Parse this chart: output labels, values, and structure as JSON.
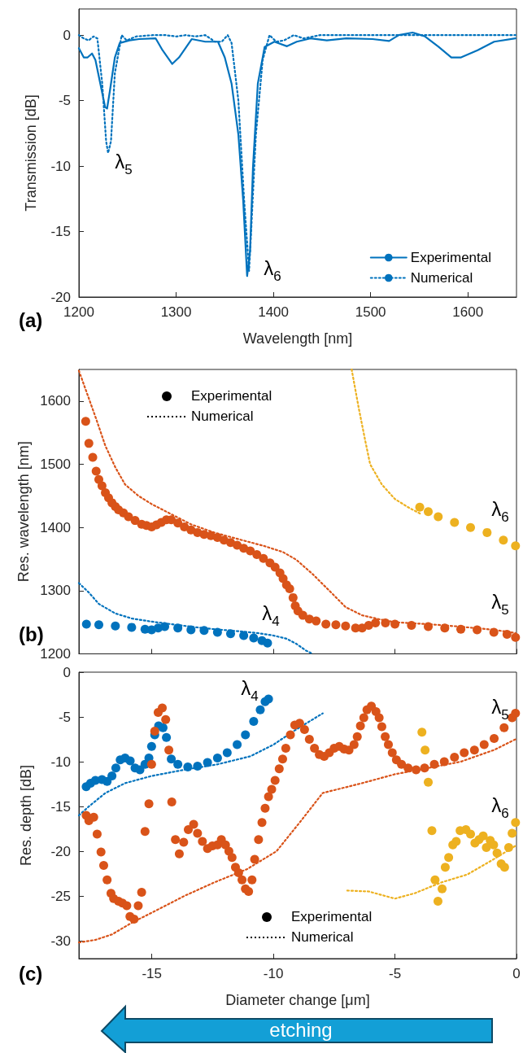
{
  "chart_data": [
    {
      "type": "line",
      "title": "(a)",
      "xlabel": "Wavelength [nm]",
      "ylabel": "Transmission [dB]",
      "xlim": [
        1200,
        1650
      ],
      "xticks": [
        1200,
        1300,
        1400,
        1500,
        1600
      ],
      "ylim": [
        -20,
        2
      ],
      "yticks": [
        -20,
        -15,
        -10,
        -5,
        0
      ],
      "grid": false,
      "legend": "bottom right",
      "annotations": [
        "λ$_{5}$",
        "λ$_{6}$"
      ],
      "series": [
        {
          "name": "Experimental",
          "color": "#0072bd",
          "line_style": "solid",
          "x": [
            1200,
            1205,
            1209,
            1213.5,
            1217,
            1222,
            1227,
            1229,
            1232,
            1237,
            1242,
            1252,
            1262,
            1279,
            1286,
            1296,
            1303,
            1316,
            1330,
            1343,
            1350,
            1357,
            1364,
            1369,
            1373,
            1376,
            1379,
            1384,
            1391,
            1401,
            1414,
            1424,
            1438,
            1455,
            1475,
            1502,
            1519,
            1529,
            1543,
            1556,
            1570,
            1583,
            1593,
            1610,
            1627,
            1649
          ],
          "values": [
            -1.0,
            -1.7,
            -1.7,
            -1.4,
            -1.9,
            -3.7,
            -5.5,
            -5.6,
            -4.2,
            -1.7,
            -0.6,
            -0.4,
            -0.3,
            -0.25,
            -1.15,
            -2.2,
            -1.7,
            -0.3,
            -0.5,
            -0.5,
            -1.7,
            -3.7,
            -7.6,
            -12.7,
            -18.4,
            -16.5,
            -10.1,
            -3.7,
            -0.9,
            -0.5,
            -0.85,
            -0.5,
            -0.25,
            -0.4,
            -0.25,
            -0.3,
            -0.45,
            0,
            0.2,
            -0.1,
            -0.9,
            -1.7,
            -1.7,
            -1.15,
            -0.5,
            -0.25
          ]
        },
        {
          "name": "Numerical",
          "color": "#0072bd",
          "line_style": "dotted",
          "x": [
            1200,
            1205,
            1210,
            1215,
            1219,
            1224,
            1228,
            1230,
            1233,
            1237,
            1244,
            1249,
            1259,
            1276,
            1289,
            1300,
            1310,
            1320,
            1330,
            1340,
            1347,
            1353,
            1357,
            1364,
            1370,
            1375,
            1377,
            1382,
            1389,
            1396,
            1403,
            1411,
            1421,
            1431,
            1448,
            1492,
            1560,
            1649
          ],
          "values": [
            0,
            -0.25,
            -0.4,
            -0.1,
            -0.25,
            -3.7,
            -8.1,
            -9.0,
            -8.1,
            -2.9,
            0,
            -0.4,
            -0.1,
            0,
            0,
            -0.1,
            0,
            -0.1,
            0,
            -0.5,
            -0.5,
            0,
            -0.6,
            -5.0,
            -12.7,
            -18.0,
            -15.2,
            -7.6,
            -1.9,
            0,
            -0.5,
            -0.4,
            0,
            -0.25,
            0,
            0,
            0,
            0
          ]
        }
      ]
    },
    {
      "type": "scatter",
      "title": "(b)",
      "ylabel": "Res. wavelength [nm]",
      "xlim": [
        -18,
        0
      ],
      "xticks": [
        -15,
        -10,
        -5,
        0
      ],
      "ylim": [
        1200,
        1650
      ],
      "yticks": [
        1200,
        1300,
        1400,
        1500,
        1600
      ],
      "grid": false,
      "legend": "top left",
      "tick_labels": "y",
      "annotations": [
        "λ$_{4}$",
        "λ$_{5}$",
        "λ$_{6}$",
        "Experimental",
        "Numerical"
      ],
      "series": [
        {
          "color": "#d95319",
          "marker": "circle",
          "x": [
            -17.72,
            -17.59,
            -17.43,
            -17.29,
            -17.18,
            -17.05,
            -16.91,
            -16.78,
            -16.64,
            -16.5,
            -16.37,
            -16.17,
            -15.96,
            -15.69,
            -15.42,
            -15.22,
            -15.01,
            -14.81,
            -14.61,
            -14.4,
            -14.2,
            -13.93,
            -13.66,
            -13.39,
            -13.12,
            -12.85,
            -12.57,
            -12.3,
            -12.03,
            -11.76,
            -11.49,
            -11.22,
            -10.95,
            -10.68,
            -10.41,
            -10.14,
            -9.93,
            -9.73,
            -9.6,
            -9.46,
            -9.33,
            -9.19,
            -9.1,
            -8.99,
            -8.79,
            -8.52,
            -8.24,
            -7.84,
            -7.43,
            -7.03,
            -6.62,
            -6.35,
            -6.08,
            -5.8,
            -5.39,
            -5.0,
            -4.32,
            -3.63,
            -2.95,
            -2.29,
            -1.62,
            -0.93,
            -0.39,
            -0.04
          ],
          "values": [
            1568,
            1533,
            1511,
            1489,
            1476,
            1466,
            1455,
            1447,
            1439,
            1433,
            1428,
            1423,
            1417,
            1411,
            1405,
            1403,
            1401,
            1404,
            1408,
            1412,
            1412,
            1407,
            1401,
            1396,
            1392,
            1389,
            1387,
            1384,
            1380,
            1376,
            1372,
            1367,
            1363,
            1357,
            1351,
            1344,
            1337,
            1328,
            1319,
            1309,
            1303,
            1289,
            1276,
            1268,
            1261,
            1255,
            1252,
            1247,
            1246,
            1244,
            1241,
            1241,
            1245,
            1249,
            1249,
            1247,
            1245,
            1243,
            1241,
            1239,
            1238,
            1234,
            1231,
            1226
          ]
        },
        {
          "type": "line",
          "line_style": "dotted",
          "color": "#d95319",
          "x": [
            -18,
            -17.72,
            -17.31,
            -16.91,
            -16.5,
            -16.1,
            -15.55,
            -15.01,
            -14.2,
            -13.39,
            -12.44,
            -11.49,
            -10.41,
            -9.6,
            -9.06,
            -8.38,
            -7.7,
            -7.03,
            -6.35,
            -5.67,
            -5.0,
            -3.63,
            -2.29,
            -0.93,
            -0.04
          ],
          "values": [
            1648,
            1618,
            1574,
            1529,
            1495,
            1468,
            1450,
            1437,
            1421,
            1405,
            1392,
            1382,
            1371,
            1361,
            1349,
            1326,
            1300,
            1274,
            1261,
            1255,
            1250,
            1247,
            1243,
            1238,
            1233
          ]
        },
        {
          "color": "#0072bd",
          "marker": "circle",
          "x": [
            -17.69,
            -17.18,
            -16.5,
            -15.83,
            -15.28,
            -15.01,
            -14.74,
            -14.47,
            -13.93,
            -13.39,
            -12.85,
            -12.3,
            -11.76,
            -11.22,
            -10.81,
            -10.47,
            -10.24
          ],
          "values": [
            1247,
            1246,
            1244,
            1242,
            1239,
            1238,
            1241,
            1243,
            1241,
            1238,
            1237,
            1234,
            1232,
            1229,
            1225,
            1221,
            1217
          ]
        },
        {
          "type": "line",
          "line_style": "dotted",
          "color": "#0072bd",
          "x": [
            -18,
            -17.59,
            -17.18,
            -16.5,
            -15.83,
            -15.01,
            -14.2,
            -13.39,
            -12.44,
            -11.49,
            -10.68,
            -10.0,
            -9.46,
            -9.06,
            -8.65,
            -8.38
          ],
          "values": [
            1312,
            1297,
            1279,
            1264,
            1256,
            1251,
            1247,
            1243,
            1239,
            1236,
            1233,
            1229,
            1224,
            1216,
            1205,
            1200
          ]
        },
        {
          "color": "#edb120",
          "marker": "circle",
          "x": [
            -3.98,
            -3.63,
            -3.22,
            -2.55,
            -1.89,
            -1.21,
            -0.54,
            -0.04
          ],
          "values": [
            1432,
            1425,
            1417,
            1408,
            1400,
            1392,
            1380,
            1371
          ]
        },
        {
          "type": "line",
          "line_style": "dotted",
          "color": "#edb120",
          "x": [
            -6.78,
            -6.49,
            -6.22,
            -6.02,
            -5.54,
            -5.0,
            -4.46,
            -3.92
          ],
          "values": [
            1650,
            1589,
            1537,
            1500,
            1468,
            1445,
            1432,
            1421
          ]
        }
      ]
    },
    {
      "type": "scatter",
      "title": "(c)",
      "xlabel": "Diameter change [μm]",
      "ylabel": "Res. depth [dB]",
      "xlim": [
        -18,
        0
      ],
      "xticks": [
        -15,
        -10,
        -5,
        0
      ],
      "ylim": [
        -32,
        0
      ],
      "yticks": [
        -30,
        -25,
        -20,
        -15,
        -10,
        -5,
        0
      ],
      "grid": false,
      "legend": "bottom",
      "annotations": [
        "λ$_{4}$",
        "λ$_{5}$",
        "λ$_{6}$",
        "Experimental",
        "Numerical",
        "etching"
      ],
      "series": [
        {
          "color": "#0072bd",
          "marker": "circle",
          "x": [
            -17.7,
            -17.52,
            -17.32,
            -17.05,
            -16.84,
            -16.64,
            -16.48,
            -16.3,
            -16.1,
            -15.89,
            -15.69,
            -15.49,
            -15.28,
            -15.12,
            -15.01,
            -14.88,
            -14.72,
            -14.54,
            -14.4,
            -14.2,
            -13.93,
            -13.52,
            -13.12,
            -12.71,
            -12.3,
            -11.9,
            -11.49,
            -11.15,
            -10.81,
            -10.54,
            -10.34,
            -10.2
          ],
          "values": [
            -12.8,
            -12.4,
            -12.1,
            -12.0,
            -12.2,
            -11.6,
            -10.7,
            -9.8,
            -9.6,
            -9.9,
            -10.7,
            -10.9,
            -10.3,
            -9.6,
            -8.3,
            -7.0,
            -6.0,
            -6.2,
            -7.3,
            -9.7,
            -10.3,
            -10.6,
            -10.5,
            -10.1,
            -9.6,
            -9.0,
            -8.1,
            -7.0,
            -5.5,
            -4.2,
            -3.3,
            -3.0
          ]
        },
        {
          "type": "line",
          "line_style": "dotted",
          "color": "#0072bd",
          "x": [
            -18,
            -17.59,
            -16.91,
            -16.1,
            -15.01,
            -13.66,
            -12.3,
            -10.95,
            -10.0,
            -9.06,
            -7.97
          ],
          "values": [
            -16.0,
            -15.0,
            -13.5,
            -12.4,
            -11.6,
            -10.9,
            -10.3,
            -9.4,
            -8.1,
            -6.4,
            -4.6
          ]
        },
        {
          "color": "#d95319",
          "marker": "circle",
          "x": [
            -17.7,
            -17.59,
            -17.39,
            -17.25,
            -17.09,
            -16.98,
            -16.84,
            -16.68,
            -16.57,
            -16.37,
            -16.21,
            -16.03,
            -15.9,
            -15.73,
            -15.56,
            -15.42,
            -15.28,
            -15.12,
            -15.01,
            -14.88,
            -14.74,
            -14.57,
            -14.43,
            -14.3,
            -14.18,
            -14.03,
            -13.87,
            -13.69,
            -13.5,
            -13.28,
            -13.12,
            -12.92,
            -12.71,
            -12.51,
            -12.3,
            -12.14,
            -11.97,
            -11.83,
            -11.7,
            -11.56,
            -11.43,
            -11.29,
            -11.15,
            -11.02,
            -10.88,
            -10.77,
            -10.61,
            -10.47,
            -10.34,
            -10.2,
            -10.07,
            -9.93,
            -9.76,
            -9.62,
            -9.49,
            -9.3,
            -9.12,
            -8.92,
            -8.72,
            -8.52,
            -8.31,
            -8.11,
            -7.91,
            -7.7,
            -7.5,
            -7.29,
            -7.09,
            -6.89,
            -6.68,
            -6.55,
            -6.42,
            -6.28,
            -6.15,
            -5.97,
            -5.78,
            -5.65,
            -5.54,
            -5.4,
            -5.27,
            -5.11,
            -4.94,
            -4.73,
            -4.46,
            -4.13,
            -3.78,
            -3.38,
            -2.97,
            -2.55,
            -2.15,
            -1.73,
            -1.33,
            -0.92,
            -0.51,
            -0.18,
            -0.04
          ],
          "values": [
            -16.0,
            -16.6,
            -16.2,
            -18.1,
            -20.1,
            -21.6,
            -23.2,
            -24.7,
            -25.3,
            -25.6,
            -25.8,
            -26.1,
            -27.3,
            -27.6,
            -26.1,
            -24.6,
            -17.8,
            -14.7,
            -10.3,
            -6.6,
            -4.5,
            -4.0,
            -5.3,
            -8.7,
            -14.5,
            -18.7,
            -20.3,
            -19.0,
            -17.6,
            -17.0,
            -18.0,
            -18.9,
            -19.7,
            -19.4,
            -19.3,
            -18.7,
            -19.3,
            -20.0,
            -20.7,
            -21.8,
            -22.4,
            -23.2,
            -24.2,
            -24.5,
            -23.2,
            -20.9,
            -18.7,
            -16.8,
            -15.2,
            -13.9,
            -13.1,
            -12.1,
            -10.8,
            -9.7,
            -8.5,
            -7.0,
            -5.9,
            -5.7,
            -6.4,
            -7.5,
            -8.5,
            -9.2,
            -9.4,
            -9.0,
            -8.5,
            -8.3,
            -8.6,
            -8.7,
            -8.1,
            -7.2,
            -6.0,
            -5.1,
            -4.2,
            -3.8,
            -4.4,
            -5.1,
            -6.1,
            -7.2,
            -8.1,
            -9.0,
            -9.8,
            -10.3,
            -10.7,
            -10.9,
            -10.7,
            -10.3,
            -10.0,
            -9.5,
            -9.0,
            -8.7,
            -8.1,
            -7.4,
            -6.2,
            -5.1,
            -4.6
          ]
        },
        {
          "type": "line",
          "line_style": "dotted",
          "color": "#d95319",
          "x": [
            -18,
            -17.31,
            -16.64,
            -15.83,
            -14.88,
            -13.66,
            -12.44,
            -11.08,
            -9.87,
            -8.92,
            -7.97,
            -6.35,
            -5.0,
            -3.63,
            -2.29,
            -0.93,
            -0.04
          ],
          "values": [
            -30.2,
            -29.9,
            -29.3,
            -28.0,
            -26.7,
            -25.0,
            -23.5,
            -22.0,
            -20.0,
            -16.8,
            -13.5,
            -12.4,
            -11.4,
            -10.7,
            -10.0,
            -8.7,
            -7.5
          ]
        },
        {
          "color": "#edb120",
          "marker": "circle",
          "x": [
            -3.89,
            -3.76,
            -3.63,
            -3.48,
            -3.35,
            -3.23,
            -3.06,
            -2.93,
            -2.79,
            -2.62,
            -2.48,
            -2.32,
            -2.08,
            -1.89,
            -1.71,
            -1.54,
            -1.37,
            -1.24,
            -1.08,
            -0.94,
            -0.8,
            -0.63,
            -0.49,
            -0.32,
            -0.18,
            -0.04
          ],
          "values": [
            -6.7,
            -8.7,
            -12.3,
            -17.7,
            -23.2,
            -25.6,
            -24.2,
            -21.8,
            -20.7,
            -19.3,
            -18.9,
            -17.7,
            -17.6,
            -18.1,
            -19.1,
            -18.7,
            -18.3,
            -19.6,
            -18.8,
            -19.3,
            -20.2,
            -21.4,
            -21.8,
            -19.6,
            -18.0,
            -16.8
          ]
        },
        {
          "type": "line",
          "line_style": "dotted",
          "color": "#edb120",
          "x": [
            -6.96,
            -6.08,
            -5.0,
            -4.19,
            -3.1,
            -2.02,
            -0.94,
            -0.04
          ],
          "values": [
            -24.4,
            -24.5,
            -25.3,
            -24.7,
            -23.5,
            -22.6,
            -20.9,
            -19.4
          ]
        }
      ]
    }
  ]
}
